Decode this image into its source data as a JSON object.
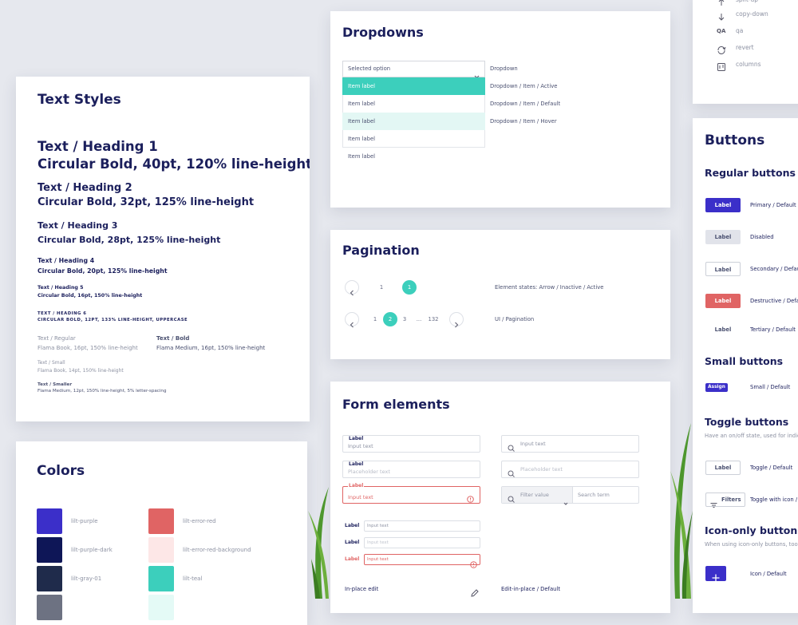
{
  "icon_list": {
    "items": [
      "split-up",
      "copy-down",
      "qa",
      "revert",
      "columns"
    ],
    "qa_icon": "QA"
  },
  "text_styles": {
    "title": "Text Styles",
    "headings": [
      {
        "name": "Text / Heading 1",
        "spec": "Circular Bold, 40pt, 120% line-height"
      },
      {
        "name": "Text / Heading 2",
        "spec": "Circular Bold, 32pt, 125% line-height"
      },
      {
        "name": "Text / Heading 3",
        "spec": "Circular Bold, 28pt, 125% line-height"
      },
      {
        "name": "Text / Heading 4",
        "spec": "Circular Bold, 20pt, 125% line-height"
      },
      {
        "name": "Text / Heading 5",
        "spec": "Circular Bold, 16pt, 150% line-height"
      }
    ],
    "heading6": {
      "name": "TEXT / HEADING 6",
      "spec": "CIRCULAR BOLD, 12PT, 133% LINE-HEIGHT, UPPERCASE"
    },
    "body": [
      {
        "name": "Text / Regular",
        "spec": "Flama Book, 16pt, 150% line-height"
      },
      {
        "name": "Text / Bold",
        "spec": "Flama Medium, 16pt, 150% line-height"
      },
      {
        "name": "Text / Small",
        "spec": "Flama Book, 14pt, 150% line-height"
      },
      {
        "name": "Text / Smaller",
        "spec": "Flama Medium, 12pt, 150% line-height, 5% letter-spacing"
      }
    ]
  },
  "colors": {
    "title": "Colors",
    "swatches": [
      {
        "name": "lilt-purple",
        "color": "#3b2fc9"
      },
      {
        "name": "lilt-error-red",
        "color": "#e06464"
      },
      {
        "name": "lilt-purple-dark",
        "color": "#0e1657"
      },
      {
        "name": "lilt-error-red-background",
        "color": "#fde7e7"
      },
      {
        "name": "lilt-gray-01",
        "color": "#1f2b4b"
      },
      {
        "name": "lilt-teal",
        "color": "#3ccfbc"
      },
      {
        "color": "#6d7282"
      },
      {
        "color": "#e4faf6"
      }
    ]
  },
  "dropdowns": {
    "title": "Dropdowns",
    "selected": "Selected option",
    "items": [
      "Item label",
      "Item label",
      "Item label",
      "Item label",
      "Item label"
    ],
    "notes": [
      "Dropdown",
      "Dropdown / Item / Active",
      "Dropdown / Item / Default",
      "Dropdown / Item / Hover"
    ]
  },
  "pagination": {
    "title": "Pagination",
    "rows": [
      {
        "pages": [
          "1",
          "1"
        ],
        "note": "Element states: Arrow / Inactive / Active"
      },
      {
        "pages": [
          "1",
          "2",
          "3",
          "...",
          "132"
        ],
        "note": "UI / Pagination"
      }
    ]
  },
  "forms": {
    "title": "Form elements",
    "fields": [
      {
        "label": "Label",
        "text": "Input text"
      },
      {
        "label": "Label",
        "text": "Placeholder text"
      },
      {
        "label": "Label",
        "text": "Input text"
      }
    ],
    "search": [
      "Input text",
      "Placeholder text"
    ],
    "filter": {
      "value": "Filter value",
      "search": "Search term"
    },
    "inline": [
      {
        "label": "Label",
        "text": "Input text"
      },
      {
        "label": "Label",
        "text": "Input text"
      },
      {
        "label": "Label",
        "text": "Input text"
      }
    ],
    "inplace": {
      "text": "In-place edit",
      "note": "Edit-in-place / Default"
    }
  },
  "buttons": {
    "title": "Buttons",
    "regular": {
      "title": "Regular buttons",
      "buttons": [
        {
          "label": "Label",
          "note": "Primary / Default"
        },
        {
          "label": "Label",
          "note": "Disabled"
        },
        {
          "label": "Label",
          "note": "Secondary / Default"
        },
        {
          "label": "Label",
          "note": "Destructive / Default"
        },
        {
          "label": "Label",
          "note": "Tertiary / Default"
        }
      ]
    },
    "small": {
      "title": "Small buttons",
      "buttons": [
        {
          "label": "Assign",
          "note": "Small / Default"
        }
      ]
    },
    "toggle": {
      "title": "Toggle buttons",
      "desc": "Have  an on/off state, used for indicating",
      "buttons": [
        {
          "label": "Label",
          "note": "Toggle / Default"
        },
        {
          "label": "Filters",
          "note": "Toggle with icon / Default"
        }
      ]
    },
    "icon": {
      "title": "Icon-only buttons",
      "desc": "When using icon-only buttons, tooltips",
      "buttons": [
        {
          "note": "Icon / Default"
        }
      ]
    }
  }
}
